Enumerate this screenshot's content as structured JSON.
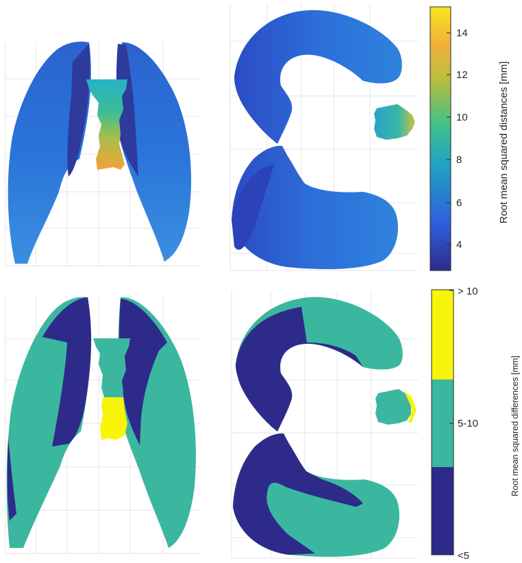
{
  "colorbar_continuous": {
    "label": "Root mean squared distances [mm]",
    "ticks": [
      "14",
      "12",
      "10",
      "8",
      "6",
      "4"
    ],
    "range": [
      3,
      15
    ],
    "colors": [
      "#2e2a8c",
      "#2f60dc",
      "#1fa3c2",
      "#3fc08c",
      "#b7be3e",
      "#f4b13a",
      "#f5e71e"
    ]
  },
  "colorbar_categorical": {
    "label": "Root mean squared differences [mm]",
    "categories": [
      "> 10",
      "5-10",
      "<5"
    ],
    "colors": [
      "#f8f40a",
      "#3bb7a0",
      "#2e2a8a"
    ]
  },
  "panels": {
    "top_left": "coronal lung and airway view, continuous RMS distance map",
    "top_right": "axial lung and airway view, continuous RMS distance map",
    "bottom_left": "coronal lung and airway view, categorical RMS difference map",
    "bottom_right": "axial lung and airway view, categorical RMS difference map"
  }
}
